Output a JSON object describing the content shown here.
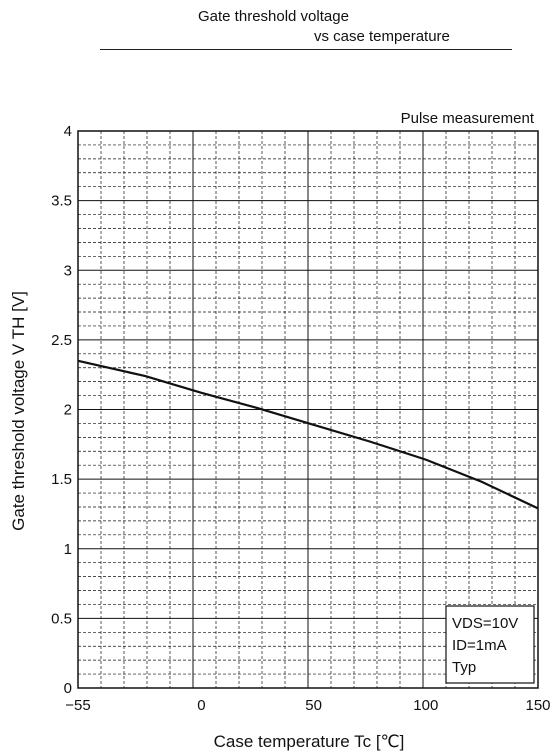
{
  "chart_data": {
    "type": "line",
    "title": "Gate threshold voltage",
    "subtitle": "vs case temperature",
    "note": "Pulse measurement",
    "xlabel": "Case temperature  Tc [℃]",
    "ylabel": "Gate threshold voltage  V TH    [V]",
    "xlim": [
      -55,
      150
    ],
    "ylim": [
      0,
      4
    ],
    "x_ticks": [
      -55,
      0,
      50,
      100,
      150
    ],
    "x_tick_labels": [
      "−55",
      "0",
      "50",
      "100",
      "150"
    ],
    "y_ticks": [
      0,
      0.5,
      1,
      1.5,
      2,
      2.5,
      3,
      3.5,
      4
    ],
    "y_tick_labels": [
      "0",
      "0.5",
      "1",
      "1.5",
      "2",
      "2.5",
      "3",
      "3.5",
      "4"
    ],
    "grid": true,
    "series": [
      {
        "x": [
          -55,
          -25,
          0,
          25,
          50,
          75,
          100,
          125,
          150
        ],
        "y": [
          2.35,
          2.24,
          2.12,
          2.01,
          1.89,
          1.77,
          1.64,
          1.48,
          1.29
        ]
      }
    ],
    "conditions": [
      "VDS=10V",
      "ID=1mA",
      "Typ"
    ]
  }
}
